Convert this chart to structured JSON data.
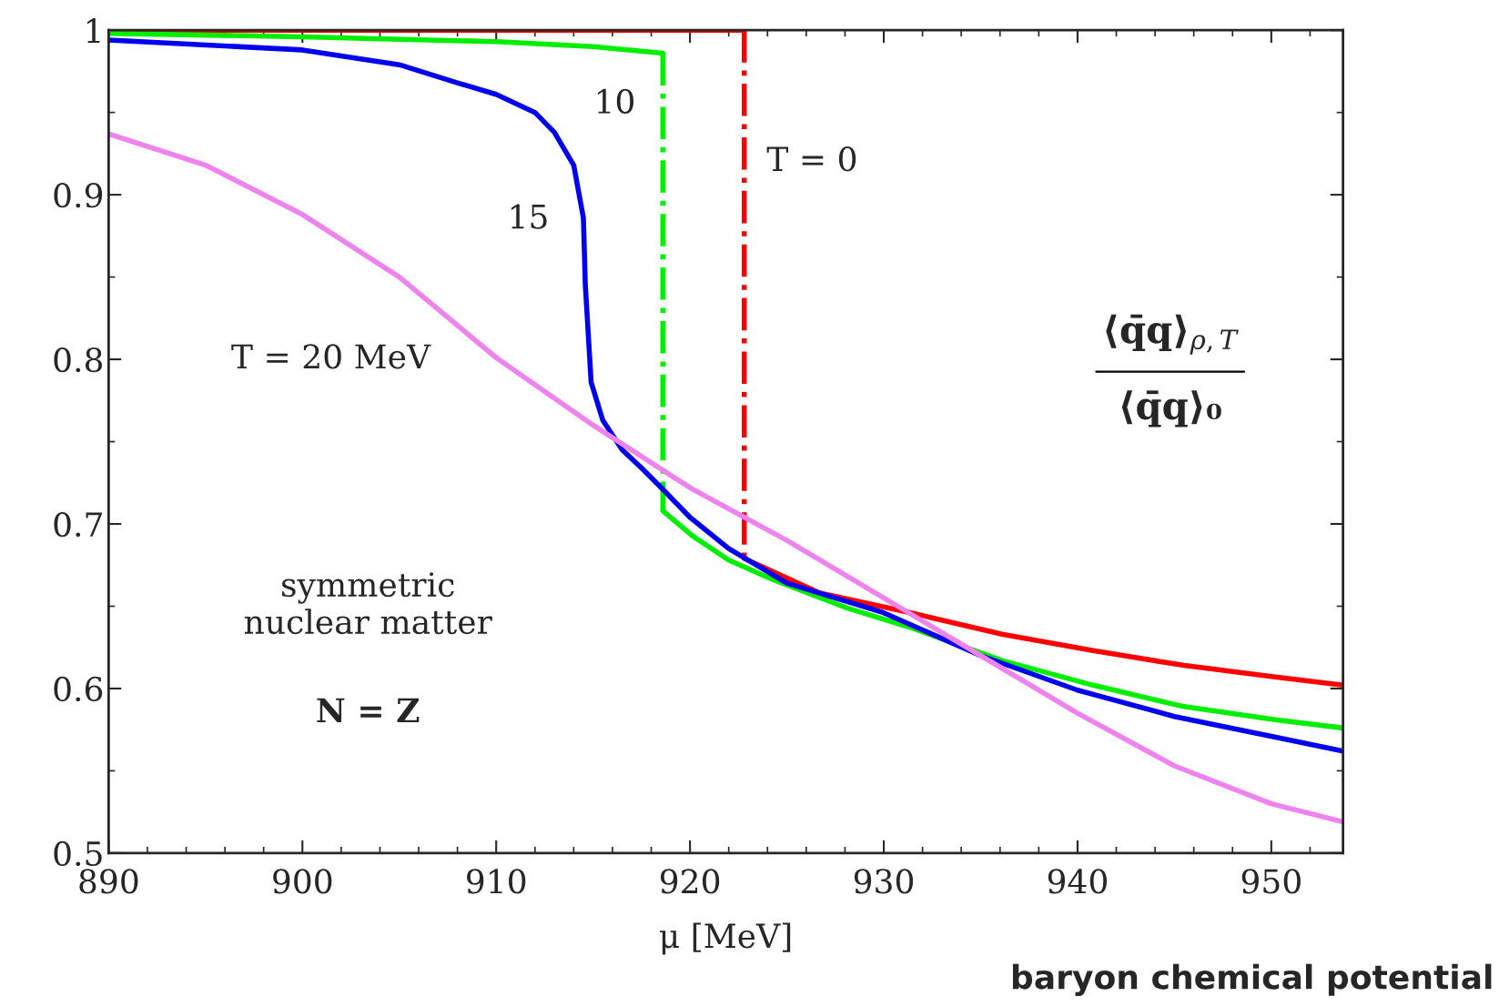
{
  "chart_data": {
    "type": "line",
    "xlabel": "μ [MeV]",
    "xlim": [
      890,
      953.7
    ],
    "ylim": [
      0.5,
      1
    ],
    "xticks": [
      890,
      900,
      910,
      920,
      930,
      940,
      950
    ],
    "yticks": [
      0.5,
      0.6,
      0.7,
      0.8,
      0.9,
      1
    ],
    "grid": false,
    "legend": false,
    "marker": "none",
    "series": [
      {
        "color": "#ff0000",
        "line_style": "solid",
        "x": [
          890,
          922.8
        ],
        "values": [
          1.0,
          1.0
        ]
      },
      {
        "color": "#ff0000",
        "line_style": "dashdot",
        "x": [
          922.8,
          922.8
        ],
        "values": [
          1.0,
          0.679
        ]
      },
      {
        "color": "#ff0000",
        "line_style": "solid",
        "x": [
          922.8,
          926.7,
          931.4,
          936.1,
          940.8,
          945.5,
          950.2,
          953.7
        ],
        "values": [
          0.679,
          0.658,
          0.646,
          0.633,
          0.623,
          0.614,
          0.607,
          0.602
        ]
      },
      {
        "color": "#00ee00",
        "line_style": "solid",
        "x": [
          890,
          900,
          910,
          915,
          918.6
        ],
        "values": [
          0.998,
          0.996,
          0.993,
          0.99,
          0.986
        ]
      },
      {
        "color": "#00ee00",
        "line_style": "dashdot",
        "x": [
          918.6,
          918.6
        ],
        "values": [
          0.986,
          0.708
        ]
      },
      {
        "color": "#00ee00",
        "line_style": "solid",
        "x": [
          918.6,
          920.1,
          922,
          924.3,
          928.1,
          931.4,
          936.1,
          940.8,
          945.5,
          950.2,
          953.7
        ],
        "values": [
          0.708,
          0.693,
          0.678,
          0.666,
          0.649,
          0.637,
          0.617,
          0.602,
          0.589,
          0.581,
          0.576
        ]
      },
      {
        "color": "#0000ee",
        "line_style": "solid",
        "x": [
          890,
          900,
          905,
          908,
          910,
          912,
          913,
          914,
          914.5,
          914.6,
          914.9,
          915.5,
          916.5,
          917.5,
          918.6,
          920,
          922,
          925,
          930,
          935,
          940,
          945,
          950,
          953.7
        ],
        "values": [
          0.994,
          0.988,
          0.979,
          0.968,
          0.961,
          0.95,
          0.938,
          0.918,
          0.886,
          0.845,
          0.786,
          0.763,
          0.745,
          0.734,
          0.721,
          0.704,
          0.685,
          0.664,
          0.646,
          0.62,
          0.599,
          0.583,
          0.571,
          0.562
        ]
      },
      {
        "color": "#ee82ee",
        "line_style": "solid",
        "x": [
          890,
          895,
          900,
          905,
          910,
          915,
          920,
          925,
          930,
          935,
          940,
          945,
          950,
          953.7
        ],
        "values": [
          0.937,
          0.918,
          0.888,
          0.85,
          0.801,
          0.76,
          0.722,
          0.69,
          0.655,
          0.62,
          0.585,
          0.553,
          0.53,
          0.519
        ]
      }
    ],
    "annotations": [
      "T = 0",
      "10",
      "15",
      "T = 20 MeV",
      "symmetric\nnuclear matter",
      "N = Z",
      "⟨q̄q⟩$_{ρ,T}$",
      "⟨q̄q⟩₀",
      "baryon chemical potential"
    ]
  }
}
